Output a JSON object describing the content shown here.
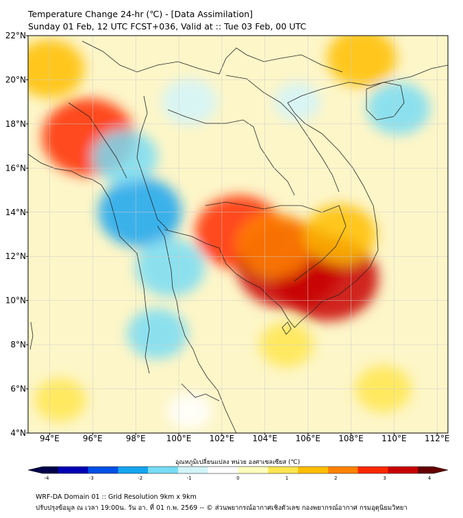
{
  "title": {
    "line1": "Temperature Change 24-hr (℃) - [Data Assimilation]",
    "line2": "Sunday 01 Feb, 12 UTC FCST+036, Valid at :: Tue 03 Feb, 00 UTC"
  },
  "map": {
    "lat_labels": [
      "22°N",
      "20°N",
      "18°N",
      "16°N",
      "14°N",
      "12°N",
      "10°N",
      "8°N",
      "6°N",
      "4°N"
    ],
    "lon_labels": [
      "94°E",
      "96°E",
      "98°E",
      "100°E",
      "102°E",
      "104°E",
      "106°E",
      "108°E",
      "110°E",
      "112°E"
    ],
    "lat_range": [
      4,
      22
    ],
    "lon_range": [
      93,
      112.5
    ],
    "field_blobs": [
      {
        "lon": 95.8,
        "lat": 17.4,
        "value": 2.6
      },
      {
        "lon": 94.0,
        "lat": 20.5,
        "value": 1.6
      },
      {
        "lon": 102.8,
        "lat": 13.1,
        "value": 2.4
      },
      {
        "lon": 105.1,
        "lat": 11.6,
        "value": 3.1
      },
      {
        "lon": 106.9,
        "lat": 11.0,
        "value": 3.0
      },
      {
        "lon": 104.5,
        "lat": 12.5,
        "value": 1.9
      },
      {
        "lon": 107.5,
        "lat": 13.0,
        "value": 1.7
      },
      {
        "lon": 108.5,
        "lat": 21.0,
        "value": 1.6
      },
      {
        "lon": 105.0,
        "lat": 8.0,
        "value": 0.9
      },
      {
        "lon": 109.5,
        "lat": 6.0,
        "value": 1.0
      },
      {
        "lon": 94.5,
        "lat": 5.5,
        "value": 0.8
      },
      {
        "lon": 98.2,
        "lat": 14.0,
        "value": -2.2
      },
      {
        "lon": 99.6,
        "lat": 11.5,
        "value": -1.6
      },
      {
        "lon": 99.0,
        "lat": 8.5,
        "value": -1.2
      },
      {
        "lon": 100.5,
        "lat": 19.0,
        "value": -1.0
      },
      {
        "lon": 97.5,
        "lat": 16.5,
        "value": -1.4
      },
      {
        "lon": 110.2,
        "lat": 18.7,
        "value": -1.3
      },
      {
        "lon": 105.5,
        "lat": 19.0,
        "value": -0.6
      },
      {
        "lon": 100.5,
        "lat": 5.0,
        "value": -0.5
      }
    ]
  },
  "colorbar": {
    "label": "อุณหภูมิเปลี่ยนแปลง หน่วย องศาเซลเซียส (℃)",
    "range": [
      -4,
      4
    ],
    "ticks": [
      "-4",
      "-3",
      "-2",
      "-1",
      "0",
      "1",
      "2",
      "3",
      "4"
    ],
    "colors": [
      "#00004a",
      "#0000b4",
      "#0050e6",
      "#14a5f0",
      "#78dcf5",
      "#d2f5fa",
      "#ffffff",
      "#ffffbe",
      "#ffe650",
      "#ffbe00",
      "#ff8200",
      "#ff2800",
      "#c80000",
      "#640000"
    ]
  },
  "footer": {
    "line1": "WRF-DA Domain 01 :: Grid Resolution 9km x 9km",
    "line2": "ปรับปรุงข้อมูล ณ เวลา 19:00น. วัน อา. ที่ 01 ก.พ. 2569 -- © ส่วนพยากรณ์อากาศเชิงตัวเลข กองพยากรณ์อากาศ กรมอุตุนิยมวิทยา"
  }
}
